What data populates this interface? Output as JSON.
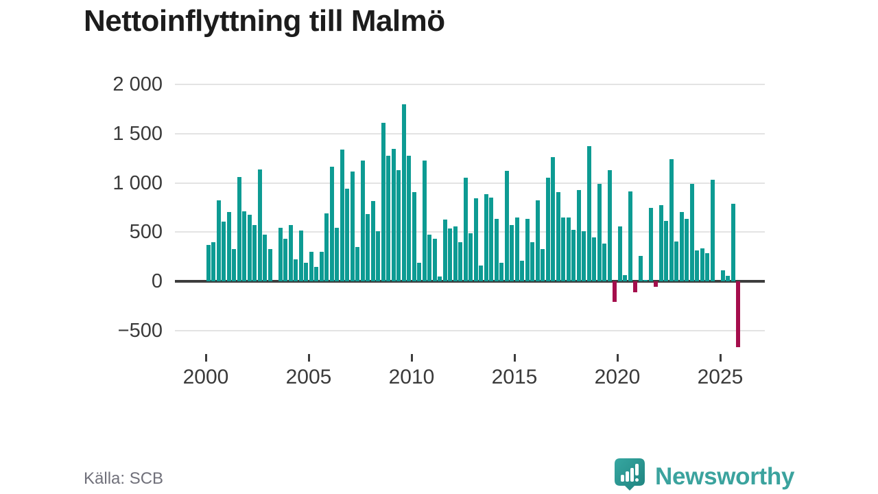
{
  "title": "Nettoinflyttning till Malmö",
  "source": "Källa: SCB",
  "branding": {
    "logo_text": "Newsworthy",
    "logo_icon": "newsworthy-barchart-pin-icon"
  },
  "colors": {
    "bar_positive": "#0d9b93",
    "bar_negative": "#a50e4c",
    "gridline": "#e3e3e3",
    "zero_axis": "#3d3d3d",
    "tick_text": "#3a3a3a",
    "title_text": "#1c1c1c",
    "source_text": "#70707a",
    "brand_teal": "#3ba39e"
  },
  "chart_data": {
    "type": "bar",
    "title": "Nettoinflyttning till Malmö",
    "xlabel": "",
    "ylabel": "",
    "period": "quarterly",
    "grid": "horizontal",
    "legend": "none",
    "ylim": [
      -700,
      2000
    ],
    "y_ticks": [
      {
        "label": "2 000",
        "value": 2000
      },
      {
        "label": "1 500",
        "value": 1500
      },
      {
        "label": "1 000",
        "value": 1000
      },
      {
        "label": "500",
        "value": 500
      },
      {
        "label": "0",
        "value": 0
      },
      {
        "label": "−500",
        "value": -500
      }
    ],
    "x_ticks": [
      "2000",
      "2005",
      "2010",
      "2015",
      "2020",
      "2025"
    ],
    "series": [
      {
        "year": "2000",
        "values": [
          370,
          400,
          820,
          605
        ]
      },
      {
        "year": "2001",
        "values": [
          705,
          325,
          1060,
          710
        ]
      },
      {
        "year": "2002",
        "values": [
          675,
          570,
          1135,
          475
        ]
      },
      {
        "year": "2003",
        "values": [
          325,
          0,
          545,
          430
        ]
      },
      {
        "year": "2004",
        "values": [
          570,
          225,
          515,
          190
        ]
      },
      {
        "year": "2005",
        "values": [
          300,
          145,
          300,
          690
        ]
      },
      {
        "year": "2006",
        "values": [
          1165,
          545,
          1340,
          940
        ]
      },
      {
        "year": "2007",
        "values": [
          1115,
          350,
          1225,
          680
        ]
      },
      {
        "year": "2008",
        "values": [
          815,
          510,
          1610,
          1275
        ]
      },
      {
        "year": "2009",
        "values": [
          1345,
          1130,
          1800,
          1275
        ]
      },
      {
        "year": "2010",
        "values": [
          905,
          185,
          1225,
          475
        ]
      },
      {
        "year": "2011",
        "values": [
          430,
          50,
          625,
          535
        ]
      },
      {
        "year": "2012",
        "values": [
          555,
          400,
          1050,
          490
        ]
      },
      {
        "year": "2013",
        "values": [
          845,
          160,
          885,
          850
        ]
      },
      {
        "year": "2014",
        "values": [
          635,
          185,
          1125,
          570
        ]
      },
      {
        "year": "2015",
        "values": [
          650,
          210,
          635,
          400
        ]
      },
      {
        "year": "2016",
        "values": [
          820,
          325,
          1050,
          1260
        ]
      },
      {
        "year": "2017",
        "values": [
          905,
          645,
          645,
          525
        ]
      },
      {
        "year": "2018",
        "values": [
          925,
          510,
          1375,
          445
        ]
      },
      {
        "year": "2019",
        "values": [
          990,
          385,
          1130,
          -210
        ]
      },
      {
        "year": "2020",
        "values": [
          555,
          60,
          910,
          -110
        ]
      },
      {
        "year": "2021",
        "values": [
          260,
          15,
          745,
          -55
        ]
      },
      {
        "year": "2022",
        "values": [
          775,
          615,
          1240,
          405
        ]
      },
      {
        "year": "2023",
        "values": [
          705,
          635,
          990,
          315
        ]
      },
      {
        "year": "2024",
        "values": [
          335,
          285,
          1030,
          0
        ]
      },
      {
        "year": "2025",
        "values": [
          110,
          55,
          790,
          -670
        ]
      }
    ]
  }
}
